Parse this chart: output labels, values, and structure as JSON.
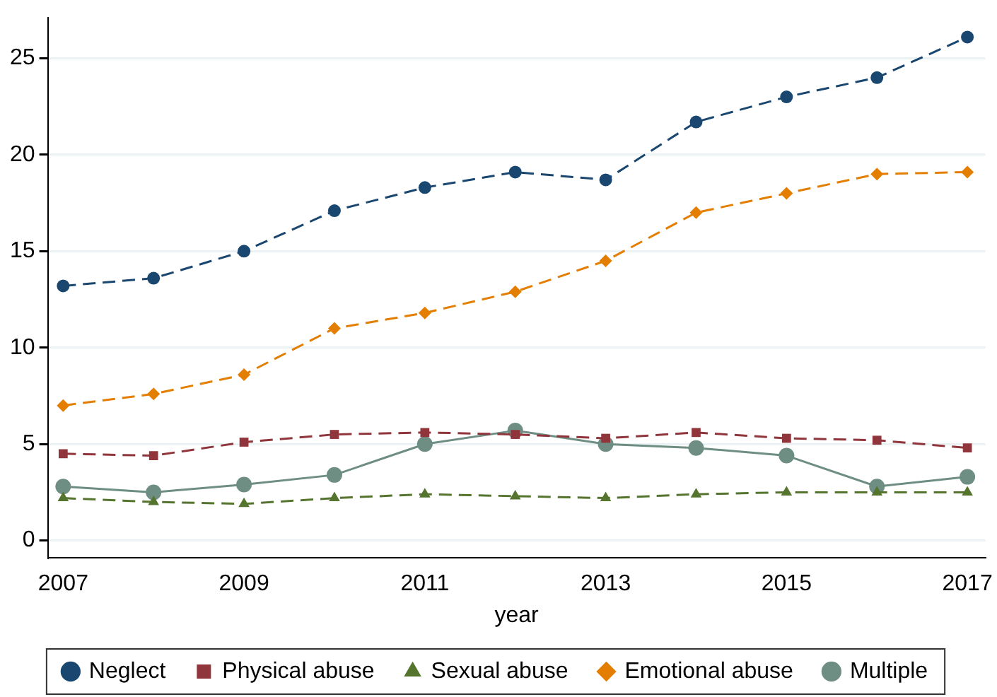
{
  "chart_data": {
    "type": "line",
    "xlabel": "year",
    "x": [
      2007,
      2008,
      2009,
      2010,
      2011,
      2012,
      2013,
      2014,
      2015,
      2016,
      2017
    ],
    "xlim": [
      2006.83,
      2017.2
    ],
    "xticks": [
      2007,
      2009,
      2011,
      2013,
      2015,
      2017
    ],
    "ylim": [
      -0.9,
      27.1
    ],
    "yticks": [
      0,
      5,
      10,
      15,
      20,
      25
    ],
    "grid": "y",
    "legend": "bottom",
    "series": [
      {
        "name": "Neglect",
        "color": "#1a476f",
        "marker": "circle",
        "line_style": "dashed",
        "values": [
          13.2,
          13.6,
          15.0,
          17.1,
          18.3,
          19.1,
          18.7,
          21.7,
          23.0,
          24.0,
          26.1
        ]
      },
      {
        "name": "Physical abuse",
        "color": "#90353b",
        "marker": "square",
        "line_style": "dashed",
        "values": [
          4.5,
          4.4,
          5.1,
          5.5,
          5.6,
          5.5,
          5.3,
          5.6,
          5.3,
          5.2,
          4.8
        ]
      },
      {
        "name": "Sexual abuse",
        "color": "#55752f",
        "marker": "triangle",
        "line_style": "dashed",
        "values": [
          2.2,
          2.0,
          1.9,
          2.2,
          2.4,
          2.3,
          2.2,
          2.4,
          2.5,
          2.5,
          2.5
        ]
      },
      {
        "name": "Emotional abuse",
        "color": "#e37e00",
        "marker": "diamond",
        "line_style": "dashed",
        "values": [
          7.0,
          7.6,
          8.6,
          11.0,
          11.8,
          12.9,
          14.5,
          17.0,
          18.0,
          19.0,
          19.1
        ]
      },
      {
        "name": "Multiple",
        "color": "#6e8e84",
        "marker": "circle",
        "line_style": "solid",
        "values": [
          2.8,
          2.5,
          2.9,
          3.4,
          5.0,
          5.7,
          5.0,
          4.8,
          4.4,
          2.8,
          3.3
        ]
      }
    ]
  }
}
